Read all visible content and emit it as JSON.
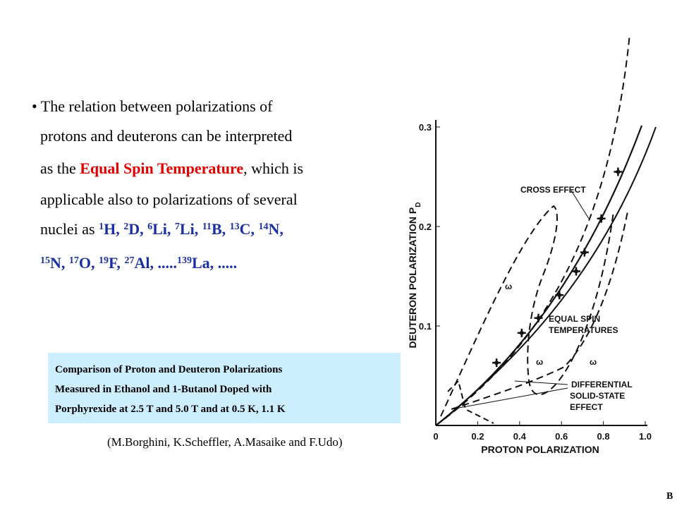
{
  "text_block": {
    "lines": [
      [
        {
          "text": "• The relation between polarizations of",
          "style": "plain"
        }
      ],
      [
        {
          "text": "protons and deuterons can be interpreted",
          "style": "plain"
        }
      ],
      [
        {
          "text": "as the ",
          "style": "plain"
        },
        {
          "text": "Equal Spin Temperature",
          "style": "red"
        },
        {
          "text": ", which is",
          "style": "plain"
        }
      ],
      [
        {
          "text": "applicable also to polarizations of several",
          "style": "plain"
        }
      ],
      [
        {
          "text": "nuclei as ",
          "style": "plain"
        },
        {
          "text": "1",
          "style": "blue-sup"
        },
        {
          "text": "H, ",
          "style": "blue"
        },
        {
          "text": "2",
          "style": "blue-sup"
        },
        {
          "text": "D, ",
          "style": "blue"
        },
        {
          "text": "6",
          "style": "blue-sup"
        },
        {
          "text": "Li, ",
          "style": "blue"
        },
        {
          "text": "7",
          "style": "blue-sup"
        },
        {
          "text": "Li, ",
          "style": "blue"
        },
        {
          "text": "11",
          "style": "blue-sup"
        },
        {
          "text": "B, ",
          "style": "blue"
        },
        {
          "text": "13",
          "style": "blue-sup"
        },
        {
          "text": "C, ",
          "style": "blue"
        },
        {
          "text": "14",
          "style": "blue-sup"
        },
        {
          "text": "N,",
          "style": "blue"
        }
      ],
      [
        {
          "text": "15",
          "style": "blue-sup"
        },
        {
          "text": "N, ",
          "style": "blue"
        },
        {
          "text": "17",
          "style": "blue-sup"
        },
        {
          "text": "O, ",
          "style": "blue"
        },
        {
          "text": "19",
          "style": "blue-sup"
        },
        {
          "text": "F, ",
          "style": "blue"
        },
        {
          "text": "27",
          "style": "blue-sup"
        },
        {
          "text": "Al, .....",
          "style": "blue"
        },
        {
          "text": "139",
          "style": "blue-sup"
        },
        {
          "text": "La, .....",
          "style": "blue"
        }
      ]
    ]
  },
  "caption_box": {
    "lines": [
      "Comparison of Proton and Deuteron Polarizations",
      "Measured in Ethanol and 1-Butanol Doped with",
      "Porphyrexide at 2.5 T and 5.0 T and at 0.5 K, 1.1 K"
    ]
  },
  "citation": "(M.Borghini, K.Scheffler, A.Masaike and F.Udo)",
  "page_mark": "B",
  "chart_data": {
    "type": "scatter",
    "x_label": "PROTON POLARIZATION",
    "y_label": "DEUTERON POLARIZATION P",
    "y_label_subscript": "D",
    "xlim": [
      0,
      1
    ],
    "ylim": [
      0,
      0.3
    ],
    "xticks": [
      0,
      0.2,
      0.4,
      0.6,
      0.8,
      {
        "value": 1,
        "label": "1.0"
      }
    ],
    "yticks": [
      0.1,
      0.2,
      0.3
    ],
    "x": [
      0.29,
      0.41,
      0.49,
      0.59,
      0.67,
      0.71,
      0.79,
      0.87
    ],
    "values": [
      0.063,
      0.093,
      0.108,
      0.131,
      0.155,
      0.174,
      0.208,
      0.255
    ],
    "annotations": [
      "CROSS EFFECT",
      "EQUAL SPIN",
      "TEMPERATURES",
      "DIFFERENTIAL",
      "SOLID-STATE",
      "EFFECT",
      "ω",
      "ω",
      "ω"
    ]
  }
}
